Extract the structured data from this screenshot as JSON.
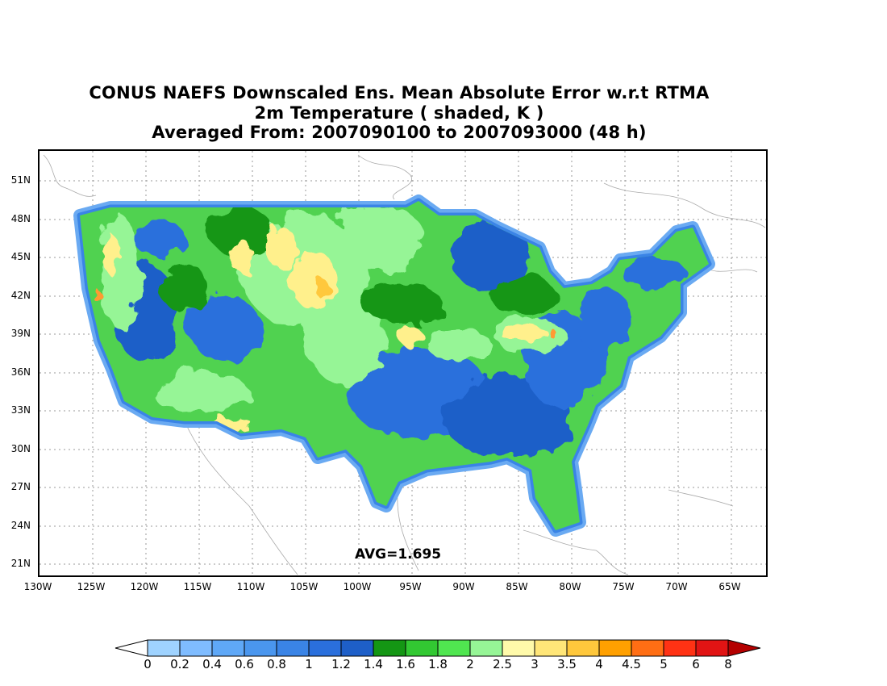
{
  "title": {
    "line1": "CONUS NAEFS Downscaled Ens. Mean Absolute Error w.r.t RTMA",
    "line2": "2m Temperature ( shaded, K )",
    "line3": "Averaged From: 2007090100 to 2007093000 (48 h)"
  },
  "map": {
    "lat_labels": [
      "51N",
      "48N",
      "45N",
      "42N",
      "39N",
      "36N",
      "33N",
      "30N",
      "27N",
      "24N",
      "21N"
    ],
    "lon_labels": [
      "130W",
      "125W",
      "120W",
      "115W",
      "110W",
      "105W",
      "100W",
      "95W",
      "90W",
      "85W",
      "80W",
      "75W",
      "70W",
      "65W"
    ],
    "avg_text": "AVG=1.695",
    "grid": true
  },
  "colorbar": {
    "labels": [
      "0",
      "0.2",
      "0.4",
      "0.6",
      "0.8",
      "1",
      "1.2",
      "1.4",
      "1.6",
      "1.8",
      "2",
      "2.5",
      "3",
      "3.5",
      "4",
      "4.5",
      "5",
      "6",
      "8"
    ],
    "colors": [
      "#9fd3ff",
      "#7fbcff",
      "#5fa8f7",
      "#4a96ee",
      "#3a84e6",
      "#2a6fdc",
      "#1e5fc8",
      "#149614",
      "#32c832",
      "#50e650",
      "#96f596",
      "#fffaaa",
      "#ffe678",
      "#ffc83c",
      "#ffa000",
      "#ff6e14",
      "#ff3214",
      "#e11414",
      "#b40000"
    ]
  }
}
